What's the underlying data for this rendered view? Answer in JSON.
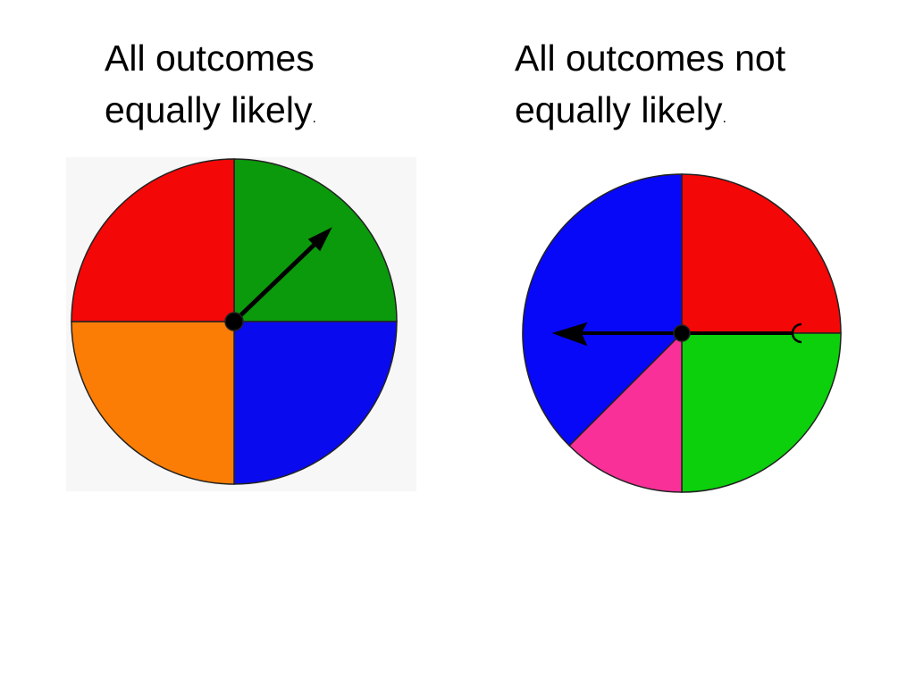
{
  "slide": {
    "left": {
      "lines": [
        "All outcomes",
        "equally likely"
      ],
      "period": "."
    },
    "right": {
      "lines": [
        "All outcomes not",
        "equally likely"
      ],
      "period": "."
    }
  }
}
